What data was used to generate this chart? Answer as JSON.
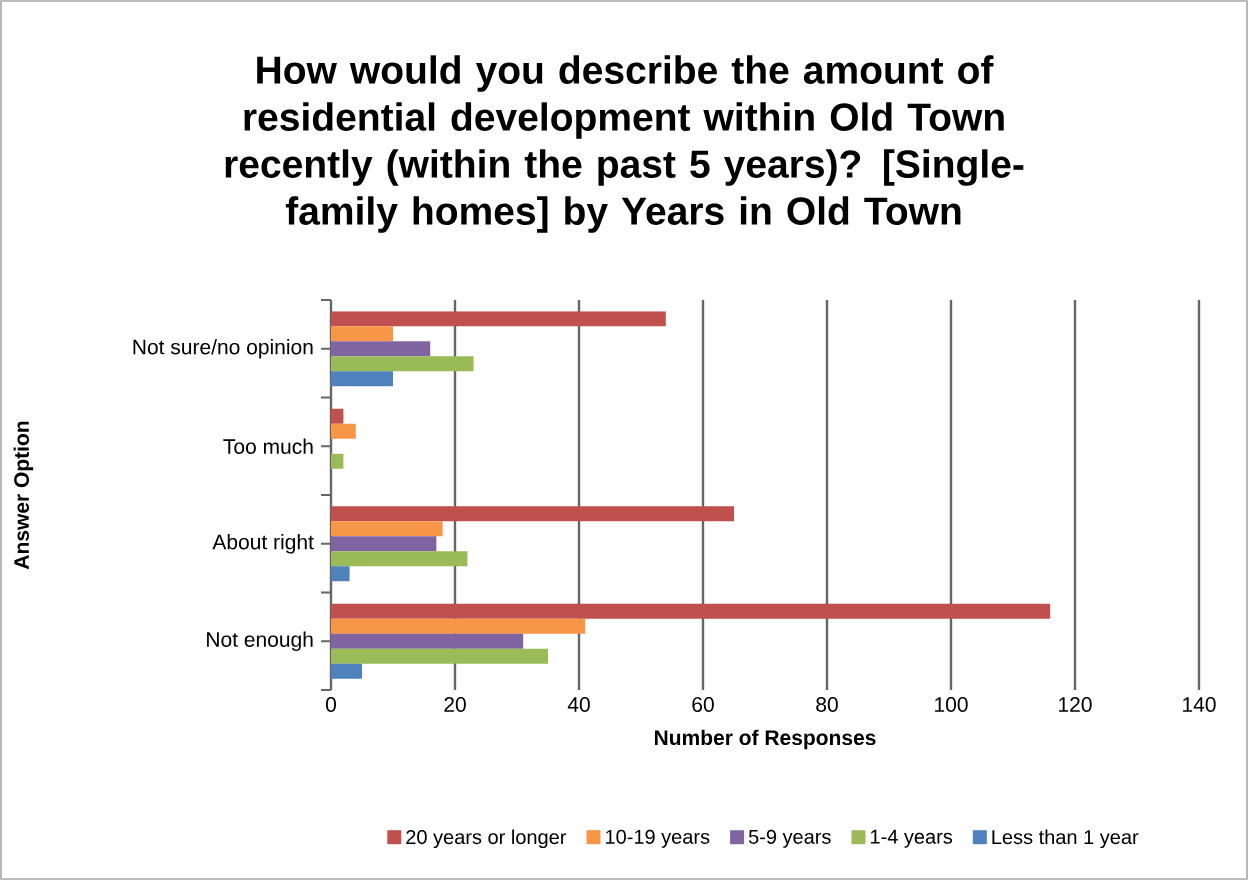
{
  "chart_data": {
    "type": "bar",
    "orientation": "horizontal",
    "title": "How would you describe the amount of residential development within Old Town recently (within the past 5 years)? [Single-family homes] by Years in Old Town",
    "xlabel": "Number of Responses",
    "ylabel": "Answer Option",
    "categories": [
      "Not sure/no opinion",
      "Too much",
      "About right",
      "Not enough"
    ],
    "series": [
      {
        "name": "20 years or longer",
        "color": "#c0504d",
        "values": [
          54,
          2,
          65,
          116
        ]
      },
      {
        "name": "10-19 years",
        "color": "#f79646",
        "values": [
          10,
          4,
          18,
          41
        ]
      },
      {
        "name": "5-9 years",
        "color": "#8064a2",
        "values": [
          16,
          0,
          17,
          31
        ]
      },
      {
        "name": "1-4 years",
        "color": "#9bbb59",
        "values": [
          23,
          2,
          22,
          35
        ]
      },
      {
        "name": "Less than 1 year",
        "color": "#4f81bd",
        "values": [
          10,
          0,
          3,
          5
        ]
      }
    ],
    "xlim": [
      0,
      140
    ],
    "xticks": [
      0,
      20,
      40,
      60,
      80,
      100,
      120,
      140
    ],
    "grid": "x",
    "legend": "bottom"
  }
}
